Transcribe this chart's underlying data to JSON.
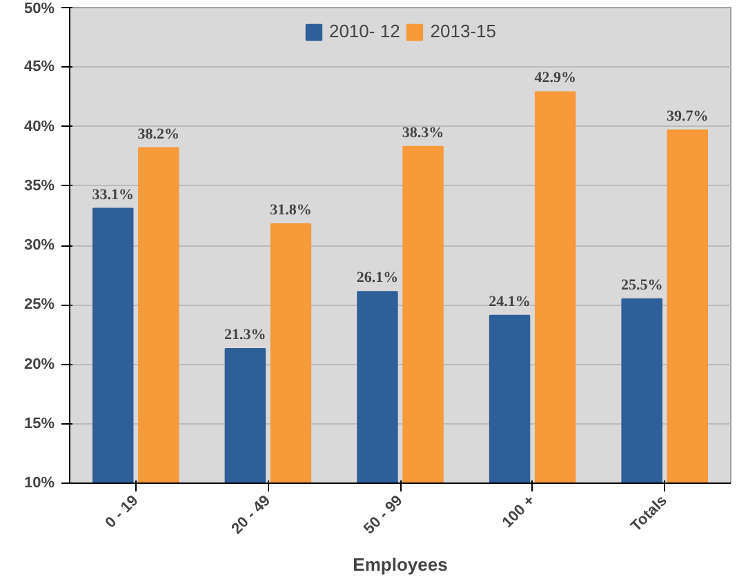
{
  "chart_data": {
    "type": "bar",
    "xlabel": "Employees",
    "categories": [
      "0 - 19",
      "20 - 49",
      "50 - 99",
      "100 +",
      "Totals"
    ],
    "series": [
      {
        "name": "2010- 12",
        "color": "#2f5f98",
        "values": [
          33.1,
          21.3,
          26.1,
          24.1,
          25.5
        ],
        "value_labels": [
          "33.1%",
          "21.3%",
          "26.1%",
          "24.1%",
          "25.5%"
        ]
      },
      {
        "name": "2013-15",
        "color": "#f8993a",
        "values": [
          38.2,
          31.8,
          38.3,
          42.9,
          39.7
        ],
        "value_labels": [
          "38.2%",
          "31.8%",
          "38.3%",
          "42.9%",
          "39.7%"
        ]
      }
    ],
    "ylim": [
      10,
      50
    ],
    "yticks": [
      {
        "value": 10,
        "label": "10%"
      },
      {
        "value": 15,
        "label": "15%"
      },
      {
        "value": 20,
        "label": "20%"
      },
      {
        "value": 25,
        "label": "25%"
      },
      {
        "value": 30,
        "label": "30%"
      },
      {
        "value": 35,
        "label": "35%"
      },
      {
        "value": 40,
        "label": "40%"
      },
      {
        "value": 45,
        "label": "45%"
      },
      {
        "value": 50,
        "label": "50%"
      }
    ],
    "grid": "y",
    "legend": "top"
  }
}
